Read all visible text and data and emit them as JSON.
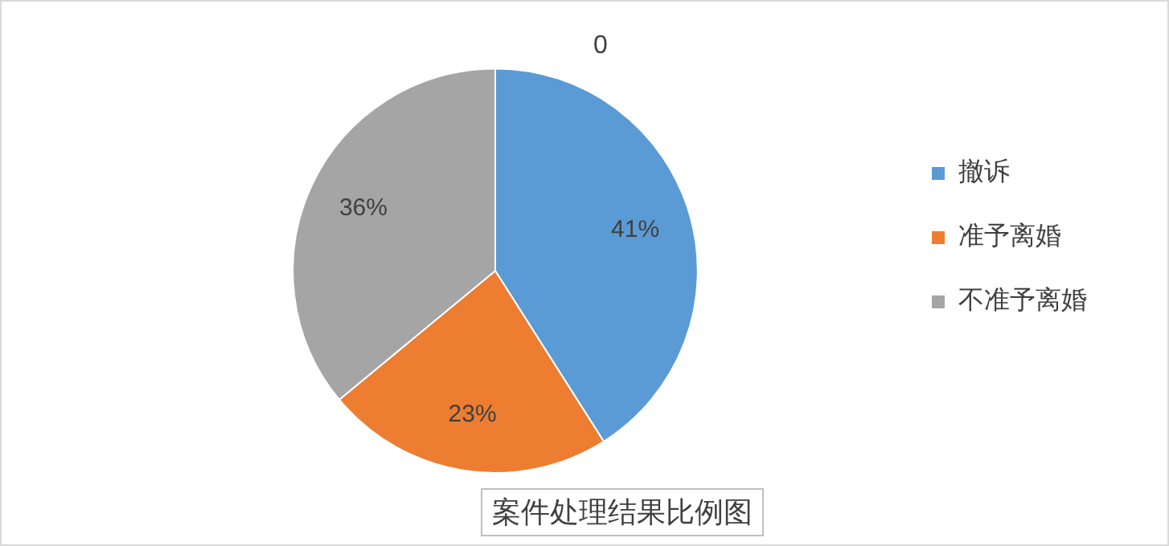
{
  "chart_data": {
    "type": "pie",
    "title": "0",
    "categories": [
      "撤诉",
      "准予离婚",
      "不准予离婚"
    ],
    "values": [
      41,
      23,
      36
    ],
    "colors": [
      "#5b9bd5",
      "#ed7d31",
      "#a5a5a5"
    ],
    "value_labels": [
      "41%",
      "23%",
      "36%"
    ],
    "legend": "right",
    "annotations": [
      "案件处理结果比例图"
    ]
  }
}
